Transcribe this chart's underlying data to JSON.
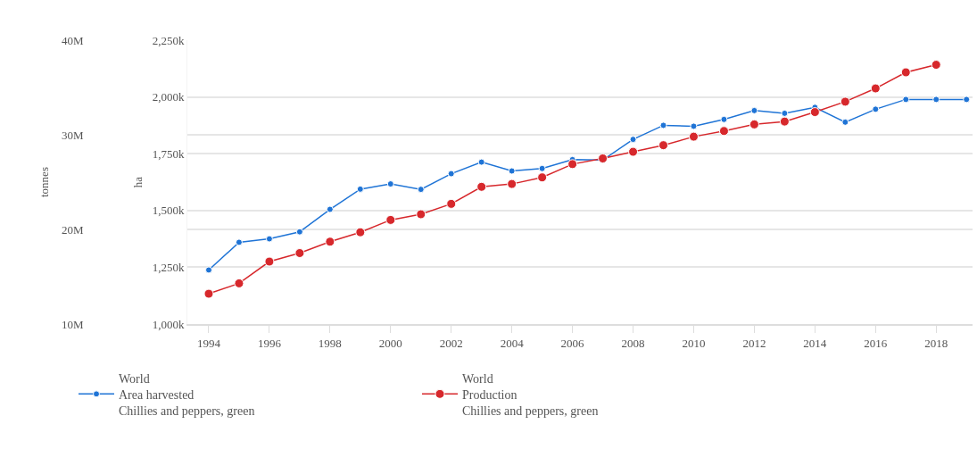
{
  "chart_data": {
    "type": "line",
    "x": [
      1994,
      1995,
      1996,
      1997,
      1998,
      1999,
      2000,
      2001,
      2002,
      2003,
      2004,
      2005,
      2006,
      2007,
      2008,
      2009,
      2010,
      2011,
      2012,
      2013,
      2014,
      2015,
      2016,
      2017,
      2018,
      2019
    ],
    "series": [
      {
        "name": "World\nArea harvested\nChillies and peppers, green",
        "color": "#1f74d6",
        "values": [
          1238,
          1360,
          1375,
          1406,
          1505,
          1594,
          1617,
          1593,
          1662,
          1713,
          1674,
          1685,
          1724,
          1722,
          1813,
          1875,
          1871,
          1901,
          1940,
          1928,
          1954,
          1889,
          1946,
          1989,
          1989,
          1989
        ]
      },
      {
        "name": "World\nProduction\nChillies and peppers, green",
        "color": "#d7282c",
        "axis": "y2",
        "values": [
          13.2,
          14.3,
          16.6,
          17.5,
          18.7,
          19.7,
          21.0,
          21.6,
          22.7,
          24.5,
          24.8,
          25.5,
          26.9,
          27.5,
          28.2,
          28.9,
          29.8,
          30.4,
          31.1,
          31.4,
          32.4,
          33.5,
          34.9,
          36.6,
          37.4,
          null
        ]
      }
    ],
    "ylabel": "ha",
    "y2label": "tonnes",
    "xlim": [
      1993.3,
      2019.2
    ],
    "xticks": [
      1994,
      1996,
      1998,
      2000,
      2002,
      2004,
      2006,
      2008,
      2010,
      2012,
      2014,
      2016,
      2018
    ],
    "ylim": [
      1000,
      2250
    ],
    "yticks": [
      {
        "value": 1000,
        "label": "1,000k"
      },
      {
        "value": 1250,
        "label": "1,250k"
      },
      {
        "value": 1500,
        "label": "1,500k"
      },
      {
        "value": 1750,
        "label": "1,750k"
      },
      {
        "value": 2000,
        "label": "2,000k"
      },
      {
        "value": 2250,
        "label": "2,250k"
      }
    ],
    "y2lim": [
      10,
      40
    ],
    "y2ticks": [
      {
        "value": 10,
        "label": "10M"
      },
      {
        "value": 20,
        "label": "20M"
      },
      {
        "value": 30,
        "label": "30M"
      },
      {
        "value": 40,
        "label": "40M"
      }
    ],
    "grid": "y",
    "legend": "bottom",
    "marker": "circle",
    "line_style": "solid"
  }
}
